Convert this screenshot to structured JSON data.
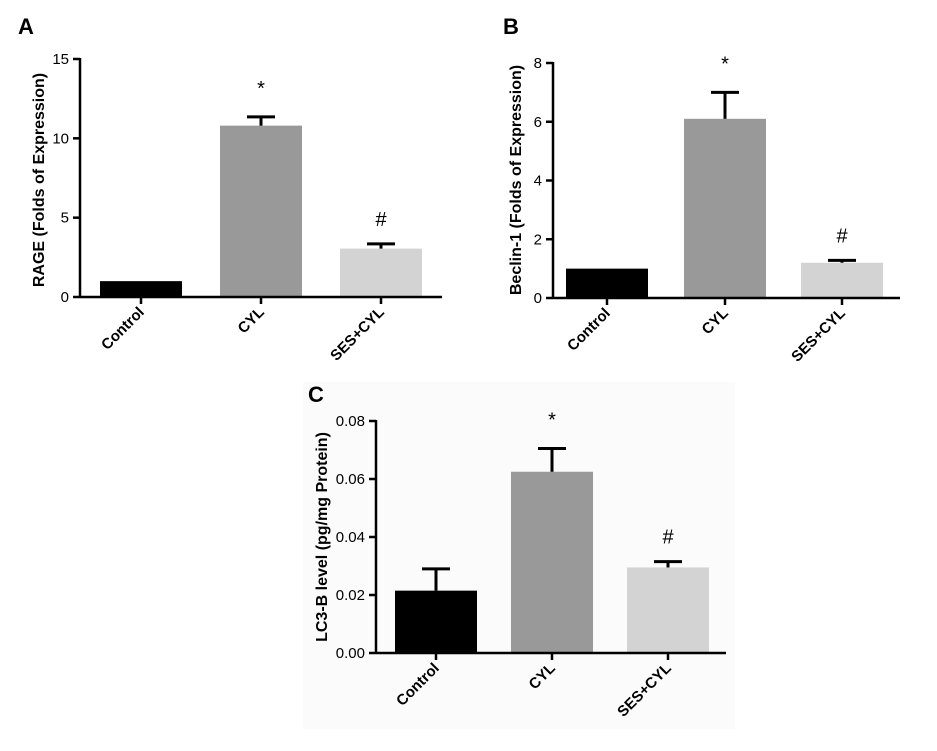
{
  "chart_data": [
    {
      "panel": "A",
      "type": "bar",
      "categories": [
        "Control",
        "CYL",
        "SES+CYL"
      ],
      "values": [
        1.0,
        10.8,
        3.05
      ],
      "errors": [
        0,
        0.55,
        0.3
      ],
      "annotations": [
        "",
        "*",
        "#"
      ],
      "colors": [
        "#000000",
        "#999999",
        "#d3d3d3"
      ],
      "title": "",
      "xlabel": "",
      "ylabel": "RAGE (Folds of Expression)",
      "ylim": [
        0,
        15
      ],
      "yticks": [
        0,
        5,
        10,
        15
      ],
      "ytick_labels": [
        "0",
        "5",
        "10",
        "15"
      ],
      "grid": false
    },
    {
      "panel": "B",
      "type": "bar",
      "categories": [
        "Control",
        "CYL",
        "SES+CYL"
      ],
      "values": [
        1.0,
        6.1,
        1.2
      ],
      "errors": [
        0,
        0.9,
        0.08
      ],
      "annotations": [
        "",
        "*",
        "#"
      ],
      "colors": [
        "#000000",
        "#999999",
        "#d3d3d3"
      ],
      "title": "",
      "xlabel": "",
      "ylabel": "Beclin-1 (Folds of Expression)",
      "ylim": [
        0,
        8
      ],
      "yticks": [
        0,
        2,
        4,
        6,
        8
      ],
      "ytick_labels": [
        "0",
        "2",
        "4",
        "6",
        "8"
      ],
      "grid": false
    },
    {
      "panel": "C",
      "type": "bar",
      "categories": [
        "Control",
        "CYL",
        "SES+CYL"
      ],
      "values": [
        0.0215,
        0.0625,
        0.0295
      ],
      "errors": [
        0.0075,
        0.008,
        0.002
      ],
      "annotations": [
        "",
        "*",
        "#"
      ],
      "colors": [
        "#000000",
        "#999999",
        "#d3d3d3"
      ],
      "title": "",
      "xlabel": "",
      "ylabel": "LC3-B level (pg/mg Protein)",
      "ylim": [
        0,
        0.08
      ],
      "yticks": [
        0,
        0.02,
        0.04,
        0.06,
        0.08
      ],
      "ytick_labels": [
        "0.00",
        "0.02",
        "0.04",
        "0.06",
        "0.08"
      ],
      "grid": false
    }
  ]
}
